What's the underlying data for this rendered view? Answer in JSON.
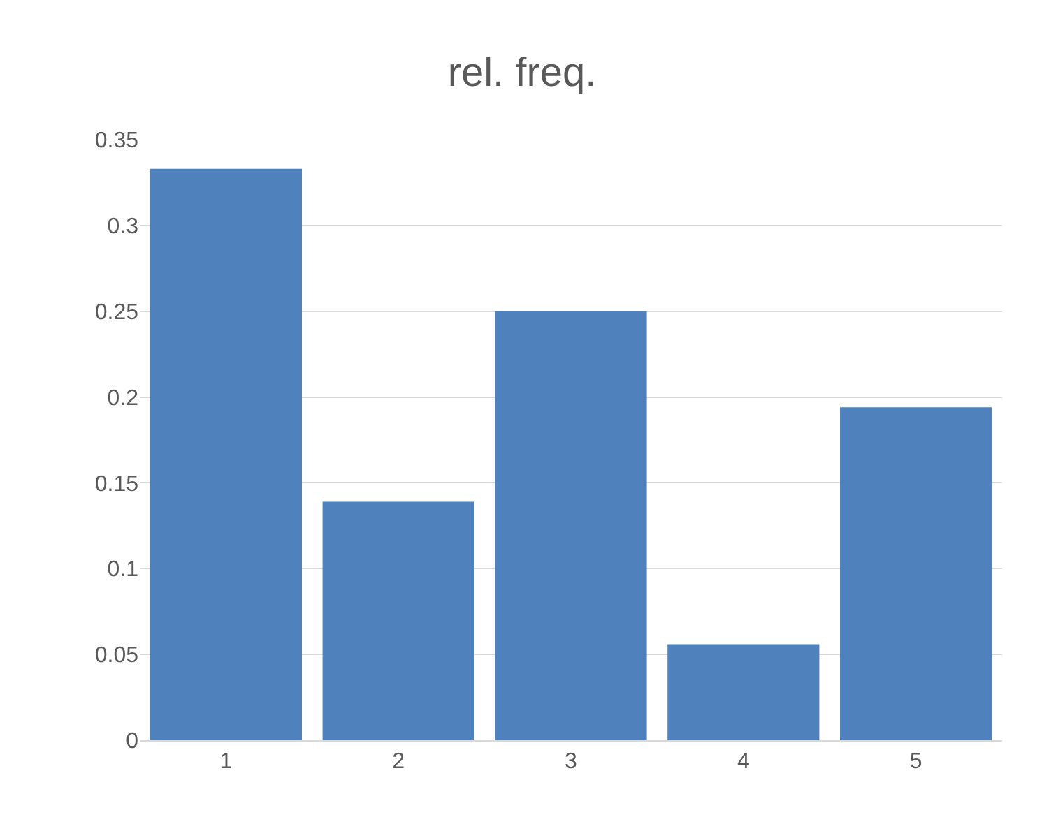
{
  "chart_data": {
    "type": "bar",
    "title": "rel. freq.",
    "categories": [
      "1",
      "2",
      "3",
      "4",
      "5"
    ],
    "values": [
      0.333,
      0.139,
      0.25,
      0.056,
      0.194
    ],
    "color": "#4f81bd",
    "ylim": [
      0,
      0.35
    ],
    "yticks": [
      0,
      0.05,
      0.1,
      0.15,
      0.2,
      0.25,
      0.3,
      0.35
    ],
    "grid": "y"
  }
}
